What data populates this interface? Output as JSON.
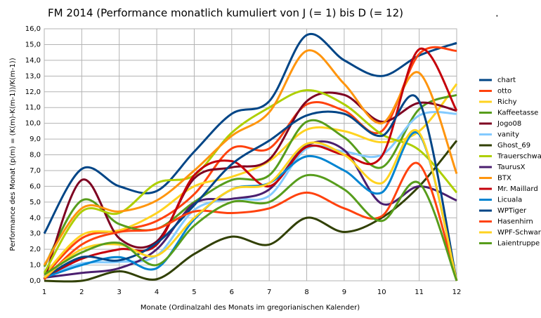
{
  "chart_data": {
    "type": "line",
    "title": "FM 2014 (Performance monatlich kumuliert von J (= 1) bis D (= 12)",
    "annotation": ".",
    "x_label": "Monate (Ordinalzahl des Monats im gregorianischen Kalender)",
    "y_label": "Performance des Monat (p(m) = (K(m)-K(m-1))/K(m-1))",
    "x": [
      1,
      2,
      3,
      4,
      5,
      6,
      7,
      8,
      9,
      10,
      11,
      12
    ],
    "xlim": [
      1,
      12
    ],
    "xticks": [
      1,
      2,
      3,
      4,
      5,
      6,
      7,
      8,
      9,
      10,
      11,
      12
    ],
    "ylim": [
      0,
      16
    ],
    "yticks": [
      {
        "value": 0,
        "label": "0,0"
      },
      {
        "value": 1,
        "label": "1,0"
      },
      {
        "value": 2,
        "label": "2,0"
      },
      {
        "value": 3,
        "label": "3,0"
      },
      {
        "value": 4,
        "label": "4,0"
      },
      {
        "value": 5,
        "label": "5,0"
      },
      {
        "value": 6,
        "label": "6,0"
      },
      {
        "value": 7,
        "label": "7,0"
      },
      {
        "value": 8,
        "label": "8,0"
      },
      {
        "value": 9,
        "label": "9,0"
      },
      {
        "value": 10,
        "label": "10,0"
      },
      {
        "value": 11,
        "label": "11,0"
      },
      {
        "value": 12,
        "label": "12,0"
      },
      {
        "value": 13,
        "label": "13,0"
      },
      {
        "value": 14,
        "label": "14,0"
      },
      {
        "value": 15,
        "label": "15,0"
      },
      {
        "value": 16,
        "label": "16,0"
      }
    ],
    "grid": true,
    "legend": "right",
    "series": [
      {
        "name": "chart",
        "color": "#004586",
        "values": [
          3.0,
          7.1,
          6.0,
          5.7,
          8.2,
          10.6,
          11.4,
          15.6,
          14.0,
          13.0,
          14.3,
          15.1
        ]
      },
      {
        "name": "otto",
        "color": "#ff420e",
        "values": [
          0.3,
          2.7,
          3.2,
          3.8,
          5.5,
          8.4,
          8.4,
          11.2,
          10.8,
          9.5,
          14.4,
          14.6
        ]
      },
      {
        "name": "Richy",
        "color": "#ffd320",
        "values": [
          0.4,
          2.9,
          3.2,
          4.3,
          6.0,
          6.6,
          7.6,
          9.6,
          9.5,
          8.8,
          9.5,
          12.5
        ]
      },
      {
        "name": "Kaffeetasse",
        "color": "#579d1c",
        "values": [
          0.9,
          5.1,
          3.6,
          3.3,
          5.0,
          6.4,
          6.7,
          10.1,
          9.1,
          7.2,
          10.9,
          11.8
        ]
      },
      {
        "name": "Jogo08",
        "color": "#7e0021",
        "values": [
          0.1,
          6.4,
          2.7,
          2.5,
          6.5,
          7.2,
          7.7,
          11.4,
          11.8,
          10.1,
          11.3,
          10.8
        ]
      },
      {
        "name": "vanity",
        "color": "#83caff",
        "values": [
          0.3,
          1.1,
          1.2,
          1.6,
          4.5,
          5.2,
          5.4,
          8.4,
          8.2,
          8.0,
          10.5,
          10.6
        ]
      },
      {
        "name": "Ghost_69",
        "color": "#314004",
        "values": [
          0.0,
          0.0,
          0.6,
          0.1,
          1.7,
          2.8,
          2.3,
          4.0,
          3.1,
          4.0,
          6.0,
          8.9
        ]
      },
      {
        "name": "Trauerschwan",
        "color": "#aecf00",
        "values": [
          0.5,
          4.4,
          4.3,
          6.2,
          6.7,
          9.4,
          11.0,
          12.1,
          11.2,
          9.3,
          8.3,
          5.6
        ]
      },
      {
        "name": "TaurusX",
        "color": "#4b1f6f",
        "values": [
          0.2,
          0.5,
          0.8,
          2.0,
          4.9,
          5.2,
          5.8,
          8.6,
          8.3,
          4.9,
          6.0,
          5.1
        ]
      },
      {
        "name": "BTX",
        "color": "#ff950e",
        "values": [
          1.0,
          4.6,
          4.4,
          5.1,
          7.0,
          9.2,
          10.7,
          14.6,
          12.5,
          10.0,
          13.2,
          6.8
        ]
      },
      {
        "name": "Mr. Maillard",
        "color": "#c5000b",
        "values": [
          0.2,
          1.4,
          2.0,
          2.3,
          6.7,
          7.6,
          6.0,
          8.5,
          8.0,
          7.9,
          14.7,
          10.8
        ]
      },
      {
        "name": "Licuala",
        "color": "#0084d1",
        "values": [
          0.2,
          1.0,
          1.5,
          0.8,
          3.9,
          5.8,
          6.2,
          7.9,
          7.0,
          5.6,
          9.3,
          0.0
        ]
      },
      {
        "name": "WPTiger",
        "color": "#004586",
        "values": [
          0.2,
          1.5,
          1.3,
          2.4,
          4.8,
          7.4,
          8.9,
          10.5,
          10.6,
          9.2,
          11.4,
          0.0
        ]
      },
      {
        "name": "Hasenhirn",
        "color": "#ff420e",
        "values": [
          0.1,
          2.3,
          3.1,
          3.3,
          4.4,
          4.3,
          4.6,
          5.6,
          4.6,
          4.1,
          7.4,
          0.0
        ]
      },
      {
        "name": "WPF-Schwarm",
        "color": "#ffd320",
        "values": [
          0.2,
          2.0,
          2.3,
          1.6,
          4.0,
          5.8,
          6.2,
          8.7,
          8.0,
          6.2,
          9.4,
          0.0
        ]
      },
      {
        "name": "Laientruppe",
        "color": "#579d1c",
        "values": [
          0.4,
          1.8,
          2.4,
          1.0,
          3.5,
          5.0,
          5.0,
          6.7,
          5.8,
          3.8,
          6.2,
          0.0
        ]
      }
    ]
  }
}
